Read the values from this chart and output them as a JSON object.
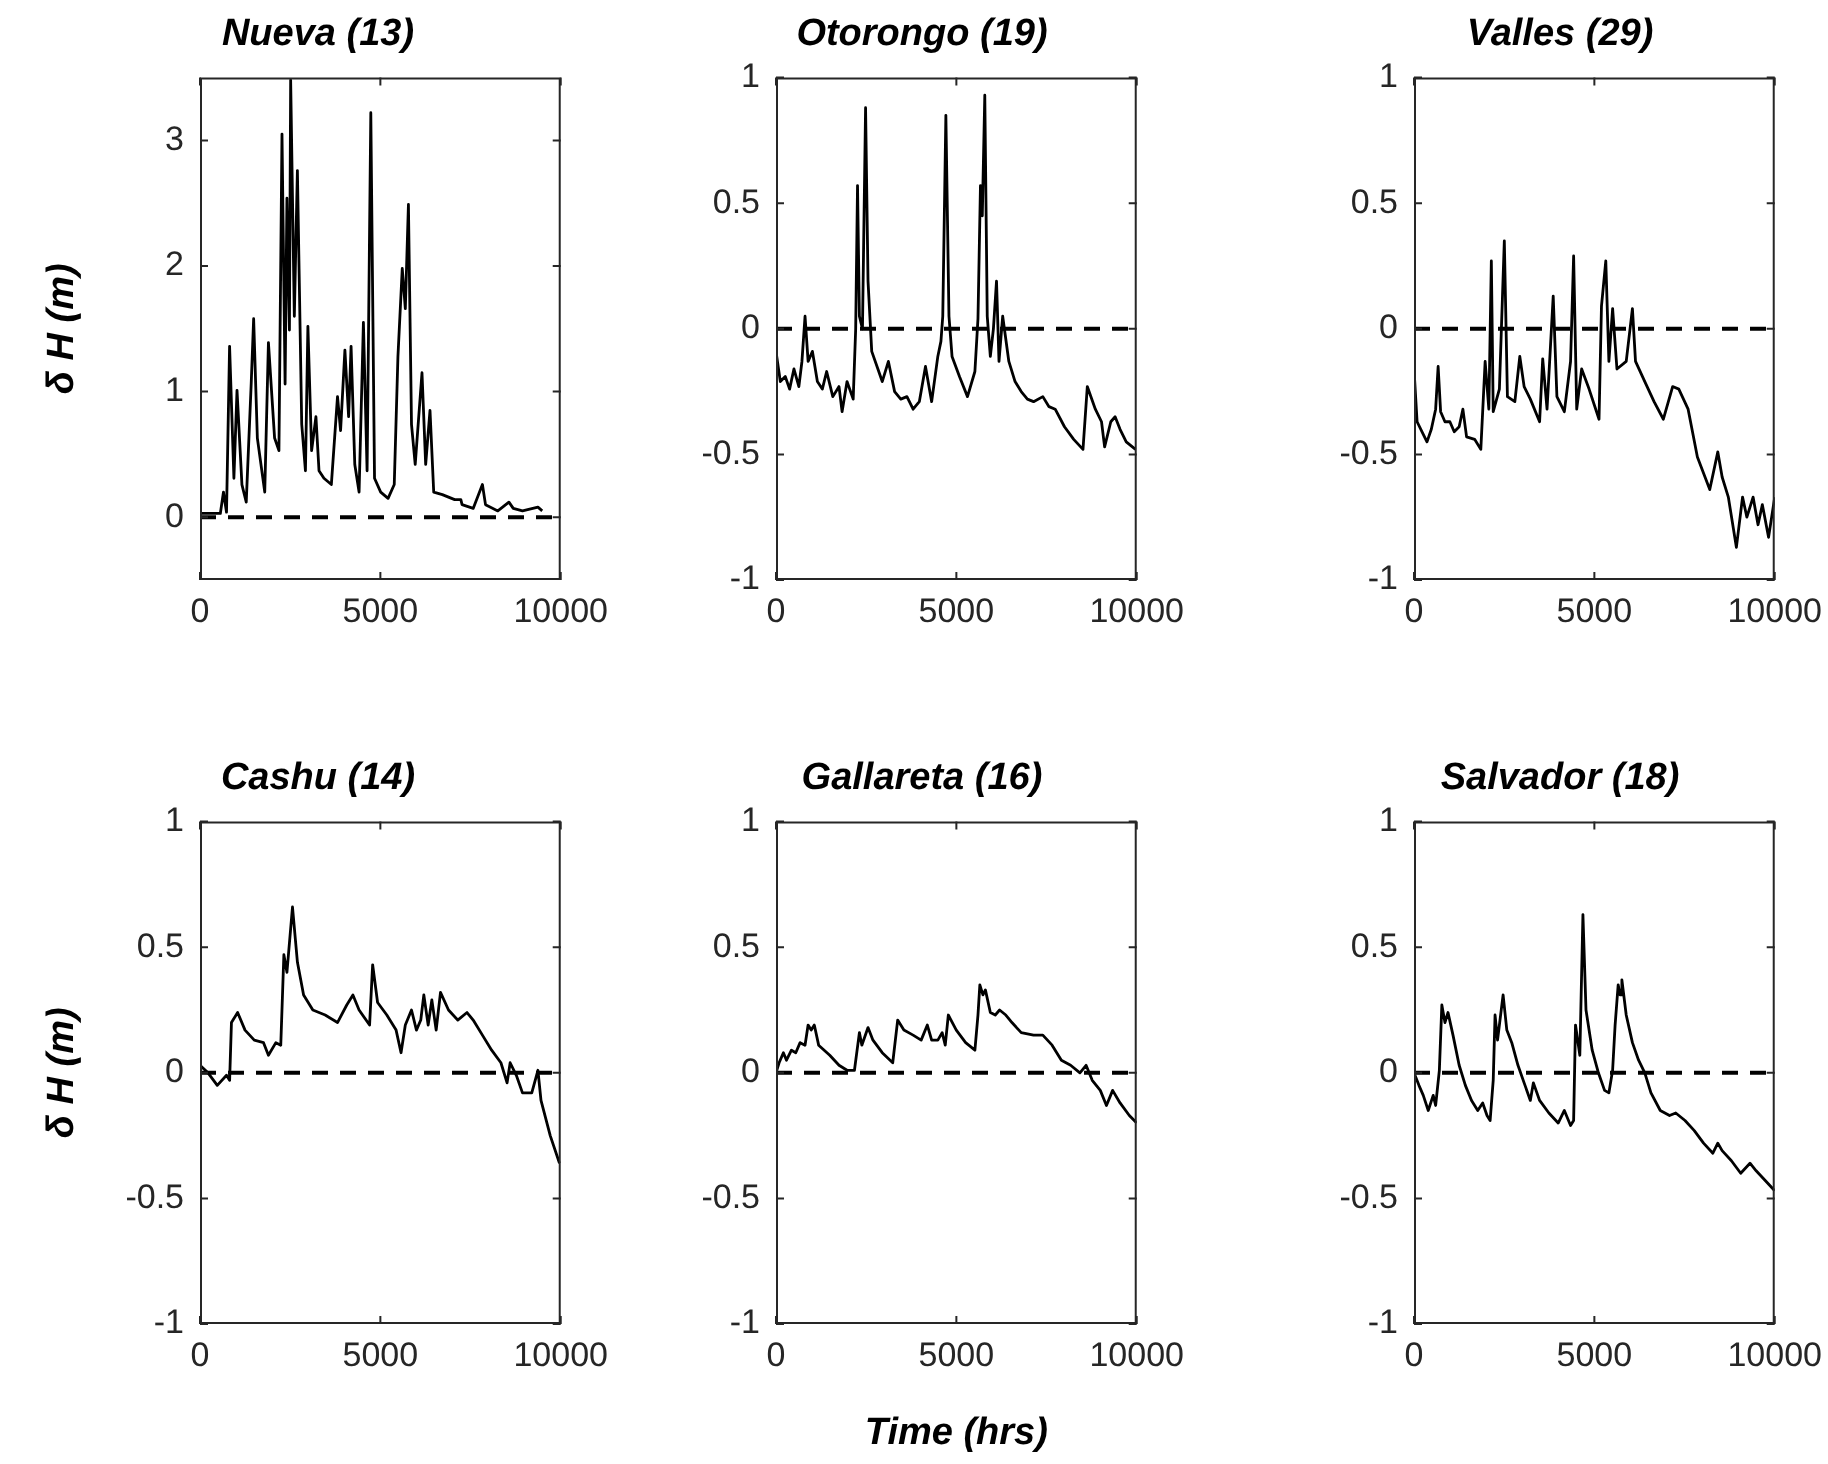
{
  "chart_data": [
    {
      "type": "line",
      "title": "Nueva (13)",
      "ylabel": "δ H (m)",
      "xlim": [
        0,
        10000
      ],
      "xticks": [
        0,
        5000,
        10000
      ],
      "ylim": [
        -0.5,
        3.5
      ],
      "yticks": [
        0,
        1,
        2,
        3
      ],
      "grid": false,
      "marker": "none",
      "line_style": "solid",
      "ref_lines": [
        {
          "axis": "y",
          "value": 0,
          "color": "#000000",
          "line_style": "dashed"
        }
      ],
      "x": [
        0,
        564,
        650,
        735,
        820,
        940,
        1026,
        1162,
        1282,
        1419,
        1487,
        1590,
        1795,
        1897,
        2068,
        2188,
        2273,
        2359,
        2410,
        2479,
        2513,
        2615,
        2700,
        2820,
        2923,
        2991,
        3094,
        3214,
        3299,
        3436,
        3641,
        3812,
        3897,
        4017,
        4120,
        4188,
        4291,
        4410,
        4530,
        4632,
        4735,
        4838,
        5009,
        5214,
        5385,
        5487,
        5607,
        5692,
        5778,
        5863,
        5966,
        6154,
        6256,
        6376,
        6479,
        6718,
        7060,
        7231,
        7265,
        7573,
        7829,
        7915,
        8256,
        8564,
        8684,
        8940,
        9368,
        9487
      ],
      "series": [
        {
          "color": "#000000",
          "values": [
            0.03,
            0.03,
            0.2,
            0.04,
            1.36,
            0.31,
            1.01,
            0.26,
            0.12,
            1.06,
            1.58,
            0.63,
            0.2,
            1.39,
            0.63,
            0.53,
            3.05,
            1.06,
            2.54,
            1.49,
            3.48,
            1.6,
            2.76,
            0.74,
            0.37,
            1.52,
            0.53,
            0.8,
            0.37,
            0.31,
            0.26,
            0.96,
            0.69,
            1.33,
            0.8,
            1.36,
            0.42,
            0.2,
            1.55,
            0.37,
            3.22,
            0.31,
            0.2,
            0.15,
            0.26,
            1.28,
            1.98,
            1.66,
            2.49,
            0.74,
            0.42,
            1.15,
            0.42,
            0.85,
            0.2,
            0.18,
            0.14,
            0.14,
            0.1,
            0.07,
            0.26,
            0.1,
            0.05,
            0.12,
            0.07,
            0.05,
            0.08,
            0.05
          ]
        }
      ]
    },
    {
      "type": "line",
      "title": "Otorongo (19)",
      "xlim": [
        0,
        10000
      ],
      "xticks": [
        0,
        5000,
        10000
      ],
      "ylim": [
        -1,
        1
      ],
      "yticks": [
        -1,
        -0.5,
        0,
        0.5,
        1
      ],
      "grid": false,
      "marker": "none",
      "line_style": "solid",
      "ref_lines": [
        {
          "axis": "y",
          "value": 0,
          "color": "#000000",
          "line_style": "dashed"
        }
      ],
      "x": [
        0,
        120,
        257,
        377,
        497,
        634,
        719,
        805,
        890,
        1010,
        1147,
        1284,
        1404,
        1575,
        1747,
        1832,
        1969,
        2140,
        2209,
        2260,
        2312,
        2397,
        2483,
        2551,
        2654,
        2825,
        2945,
        3116,
        3288,
        3459,
        3630,
        3801,
        3973,
        4144,
        4315,
        4486,
        4572,
        4623,
        4709,
        4795,
        4880,
        5086,
        5308,
        5514,
        5599,
        5668,
        5719,
        5788,
        5856,
        5942,
        6027,
        6113,
        6182,
        6284,
        6455,
        6627,
        6798,
        6969,
        7140,
        7397,
        7568,
        7740,
        7997,
        8253,
        8510,
        8630,
        8853,
        9024,
        9110,
        9281,
        9401,
        9538,
        9709,
        9966
      ],
      "series": [
        {
          "color": "#000000",
          "values": [
            -0.09,
            -0.21,
            -0.19,
            -0.24,
            -0.16,
            -0.23,
            -0.13,
            0.05,
            -0.13,
            -0.09,
            -0.21,
            -0.24,
            -0.17,
            -0.27,
            -0.23,
            -0.33,
            -0.21,
            -0.28,
            0,
            0.57,
            0.05,
            0,
            0.88,
            0.19,
            -0.09,
            -0.16,
            -0.21,
            -0.13,
            -0.25,
            -0.28,
            -0.27,
            -0.32,
            -0.29,
            -0.15,
            -0.29,
            -0.11,
            -0.05,
            0.05,
            0.85,
            0.05,
            -0.11,
            -0.19,
            -0.27,
            -0.17,
            0.04,
            0.57,
            0.45,
            0.93,
            0.05,
            -0.11,
            0,
            0.19,
            -0.13,
            0.05,
            -0.13,
            -0.21,
            -0.25,
            -0.28,
            -0.29,
            -0.27,
            -0.31,
            -0.32,
            -0.39,
            -0.44,
            -0.48,
            -0.23,
            -0.32,
            -0.37,
            -0.47,
            -0.37,
            -0.35,
            -0.4,
            -0.45,
            -0.48
          ]
        }
      ]
    },
    {
      "type": "line",
      "title": "Valles (29)",
      "xlim": [
        0,
        10000
      ],
      "xticks": [
        0,
        5000,
        10000
      ],
      "ylim": [
        -1,
        1
      ],
      "yticks": [
        -1,
        -0.5,
        0,
        0.5,
        1
      ],
      "grid": false,
      "marker": "none",
      "line_style": "solid",
      "ref_lines": [
        {
          "axis": "y",
          "value": 0,
          "color": "#000000",
          "line_style": "dashed"
        }
      ],
      "x": [
        0,
        86,
        223,
        360,
        480,
        600,
        669,
        738,
        858,
        995,
        1115,
        1252,
        1355,
        1458,
        1681,
        1852,
        1972,
        2075,
        2144,
        2196,
        2367,
        2504,
        2590,
        2796,
        2933,
        3053,
        3225,
        3482,
        3568,
        3688,
        3859,
        3962,
        4168,
        4340,
        4425,
        4511,
        4648,
        4854,
        5129,
        5197,
        5317,
        5403,
        5506,
        5626,
        5883,
        6055,
        6141,
        6398,
        6655,
        6913,
        7170,
        7341,
        7599,
        7856,
        8199,
        8422,
        8542,
        8714,
        8937,
        9108,
        9228,
        9400,
        9537,
        9657,
        9829,
        10000
      ],
      "series": [
        {
          "color": "#000000",
          "values": [
            -0.16,
            -0.37,
            -0.41,
            -0.45,
            -0.4,
            -0.32,
            -0.15,
            -0.33,
            -0.37,
            -0.37,
            -0.41,
            -0.39,
            -0.32,
            -0.43,
            -0.44,
            -0.48,
            -0.13,
            -0.32,
            0.27,
            -0.33,
            -0.24,
            0.35,
            -0.27,
            -0.29,
            -0.11,
            -0.23,
            -0.28,
            -0.37,
            -0.12,
            -0.32,
            0.13,
            -0.27,
            -0.33,
            -0.13,
            0.29,
            -0.32,
            -0.16,
            -0.24,
            -0.36,
            0.09,
            0.27,
            -0.13,
            0.08,
            -0.16,
            -0.13,
            0.08,
            -0.13,
            -0.21,
            -0.29,
            -0.36,
            -0.23,
            -0.24,
            -0.32,
            -0.51,
            -0.64,
            -0.49,
            -0.59,
            -0.67,
            -0.87,
            -0.67,
            -0.75,
            -0.67,
            -0.78,
            -0.7,
            -0.83,
            -0.67
          ]
        }
      ]
    },
    {
      "type": "line",
      "title": "Cashu (14)",
      "ylabel": "δ H (m)",
      "xlim": [
        0,
        10000
      ],
      "xticks": [
        0,
        5000,
        10000
      ],
      "ylim": [
        -1,
        1
      ],
      "yticks": [
        -1,
        -0.5,
        0,
        0.5,
        1
      ],
      "grid": false,
      "marker": "none",
      "line_style": "solid",
      "ref_lines": [
        {
          "axis": "y",
          "value": 0,
          "color": "#000000",
          "line_style": "dashed"
        }
      ],
      "x": [
        0,
        222,
        479,
        735,
        821,
        872,
        1043,
        1248,
        1504,
        1761,
        1897,
        2103,
        2239,
        2325,
        2410,
        2564,
        2701,
        2872,
        3128,
        3470,
        3812,
        4068,
        4239,
        4410,
        4701,
        4786,
        4923,
        5179,
        5436,
        5573,
        5692,
        5863,
        6000,
        6120,
        6205,
        6325,
        6427,
        6547,
        6667,
        6889,
        7145,
        7402,
        7573,
        7829,
        8085,
        8342,
        8513,
        8598,
        8769,
        8940,
        9197,
        9368,
        9453,
        9709,
        9966
      ],
      "series": [
        {
          "color": "#000000",
          "values": [
            0.03,
            0,
            -0.05,
            -0.01,
            -0.03,
            0.2,
            0.24,
            0.17,
            0.13,
            0.12,
            0.07,
            0.12,
            0.11,
            0.47,
            0.4,
            0.66,
            0.44,
            0.31,
            0.25,
            0.23,
            0.2,
            0.27,
            0.31,
            0.25,
            0.19,
            0.43,
            0.28,
            0.23,
            0.17,
            0.08,
            0.19,
            0.25,
            0.17,
            0.21,
            0.31,
            0.19,
            0.29,
            0.17,
            0.32,
            0.25,
            0.21,
            0.24,
            0.21,
            0.15,
            0.09,
            0.04,
            -0.04,
            0.04,
            -0.01,
            -0.08,
            -0.08,
            0.01,
            -0.11,
            -0.25,
            -0.36
          ]
        }
      ]
    },
    {
      "type": "line",
      "title": "Gallareta (16)",
      "xlabel": "Time (hrs)",
      "xlim": [
        0,
        10000
      ],
      "xticks": [
        0,
        5000,
        10000
      ],
      "ylim": [
        -1,
        1
      ],
      "yticks": [
        -1,
        -0.5,
        0,
        0.5,
        1
      ],
      "grid": false,
      "marker": "none",
      "line_style": "solid",
      "ref_lines": [
        {
          "axis": "y",
          "value": 0,
          "color": "#000000",
          "line_style": "dashed"
        }
      ],
      "x": [
        0,
        86,
        205,
        291,
        428,
        548,
        668,
        805,
        890,
        976,
        1062,
        1182,
        1490,
        1747,
        1969,
        2175,
        2312,
        2380,
        2551,
        2688,
        2945,
        3236,
        3373,
        3545,
        3801,
        4024,
        4195,
        4315,
        4486,
        4606,
        4692,
        4777,
        4998,
        5257,
        5514,
        5599,
        5651,
        5736,
        5805,
        5942,
        6079,
        6199,
        6370,
        6541,
        6798,
        7140,
        7397,
        7654,
        7911,
        8168,
        8425,
        8596,
        8767,
        8990,
        9161,
        9332,
        9538,
        9795,
        10000
      ],
      "series": [
        {
          "color": "#000000",
          "values": [
            0,
            0.04,
            0.08,
            0.05,
            0.09,
            0.08,
            0.12,
            0.11,
            0.19,
            0.17,
            0.19,
            0.11,
            0.07,
            0.03,
            0.01,
            0.01,
            0.16,
            0.11,
            0.18,
            0.13,
            0.08,
            0.04,
            0.21,
            0.17,
            0.15,
            0.13,
            0.19,
            0.13,
            0.13,
            0.16,
            0.11,
            0.23,
            0.17,
            0.12,
            0.09,
            0.23,
            0.35,
            0.31,
            0.33,
            0.24,
            0.23,
            0.25,
            0.23,
            0.2,
            0.16,
            0.15,
            0.15,
            0.11,
            0.05,
            0.03,
            0,
            0.03,
            -0.03,
            -0.07,
            -0.13,
            -0.07,
            -0.12,
            -0.17,
            -0.2
          ]
        }
      ]
    },
    {
      "type": "line",
      "title": "Salvador (18)",
      "xlim": [
        0,
        10000
      ],
      "xticks": [
        0,
        5000,
        10000
      ],
      "ylim": [
        -1,
        1
      ],
      "yticks": [
        -1,
        -0.5,
        0,
        0.5,
        1
      ],
      "grid": false,
      "marker": "none",
      "line_style": "solid",
      "ref_lines": [
        {
          "axis": "y",
          "value": 0,
          "color": "#000000",
          "line_style": "dashed"
        }
      ],
      "x": [
        0,
        137,
        257,
        395,
        532,
        600,
        703,
        772,
        858,
        943,
        1081,
        1252,
        1424,
        1595,
        1767,
        1904,
        2024,
        2110,
        2196,
        2247,
        2316,
        2384,
        2470,
        2573,
        2710,
        2882,
        3053,
        3225,
        3310,
        3482,
        3739,
        3997,
        4168,
        4340,
        4425,
        4477,
        4597,
        4683,
        4768,
        4940,
        5112,
        5283,
        5403,
        5506,
        5575,
        5660,
        5712,
        5763,
        5883,
        6055,
        6226,
        6398,
        6569,
        6827,
        7084,
        7256,
        7513,
        7770,
        8027,
        8285,
        8422,
        8542,
        8799,
        9057,
        9314,
        9485,
        9743,
        10000
      ],
      "series": [
        {
          "color": "#000000",
          "values": [
            0,
            -0.05,
            -0.09,
            -0.15,
            -0.09,
            -0.13,
            0.01,
            0.27,
            0.2,
            0.24,
            0.15,
            0.03,
            -0.05,
            -0.11,
            -0.15,
            -0.12,
            -0.17,
            -0.19,
            -0.03,
            0.23,
            0.13,
            0.21,
            0.31,
            0.17,
            0.12,
            0.03,
            -0.04,
            -0.11,
            -0.04,
            -0.11,
            -0.16,
            -0.2,
            -0.15,
            -0.21,
            -0.19,
            0.19,
            0.07,
            0.63,
            0.25,
            0.09,
            0,
            -0.07,
            -0.08,
            0.01,
            0.19,
            0.35,
            0.31,
            0.37,
            0.23,
            0.12,
            0.05,
            0,
            -0.08,
            -0.15,
            -0.17,
            -0.16,
            -0.19,
            -0.23,
            -0.28,
            -0.32,
            -0.28,
            -0.31,
            -0.35,
            -0.4,
            -0.36,
            -0.39,
            -0.43,
            -0.47
          ]
        }
      ]
    }
  ]
}
